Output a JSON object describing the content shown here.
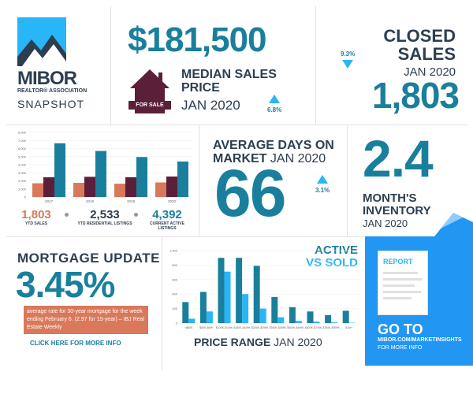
{
  "colors": {
    "teal": "#1a7f9c",
    "dark": "#2d3e50",
    "light_blue": "#29b6f6",
    "orange": "#d9785a",
    "maroon": "#5b1f39",
    "blue_panel": "#2196f3"
  },
  "logo": {
    "brand": "MIBOR",
    "sub": "REALTOR® ASSOCIATION",
    "snapshot": "SNAPSHOT"
  },
  "median": {
    "value": "$181,500",
    "label_line1": "MEDIAN SALES",
    "label_line2": "PRICE",
    "period": "JAN 2020",
    "change": "6.8%",
    "badge": "FOR SALE",
    "icon": "house-icon"
  },
  "closed": {
    "change": "9.3%",
    "label_line1": "CLOSED",
    "label_line2": "SALES",
    "period": "JAN 2020",
    "value": "1,803"
  },
  "adom": {
    "label_line1": "AVERAGE DAYS ON",
    "label_line2a": "MARKET",
    "period": "JAN 2020",
    "value": "66",
    "change": "3.1%"
  },
  "inventory": {
    "value": "2.4",
    "label_line1": "MONTH'S",
    "label_line2": "INVENTORY",
    "period": "JAN 2020"
  },
  "mortgage": {
    "title": "MORTGAGE UPDATE",
    "rate": "3.45%",
    "note": "average rate for 30-year mortgage for the week ending February 6. (2.97 for 15-year) – IBJ Real Estate Weekly",
    "link": "CLICK HERE FOR MORE INFO"
  },
  "go": {
    "report": "REPORT",
    "title": "GO TO",
    "url": "MIBOR.COM/MARKETINSIGHTS",
    "more": "FOR MORE INFO"
  },
  "stats": [
    {
      "value": "1,803",
      "label": "YTD SALES"
    },
    {
      "value": "2,533",
      "label": "YTD RESIDENTIAL LISTINGS"
    },
    {
      "value": "4,392",
      "label": "CURRENT ACTIVE LISTINGS"
    }
  ],
  "chart_data": [
    {
      "type": "bar",
      "categories": [
        "2017",
        "2018",
        "2019",
        "2020"
      ],
      "series": [
        {
          "name": "YTD SALES",
          "values": [
            1700,
            1750,
            1650,
            1803
          ]
        },
        {
          "name": "YTD RESIDENTIAL LISTINGS",
          "values": [
            2450,
            2500,
            2450,
            2533
          ]
        },
        {
          "name": "CURRENT ACTIVE LISTINGS",
          "values": [
            6650,
            5700,
            4950,
            4392
          ]
        }
      ],
      "yticks": [
        "0",
        "1,000",
        "2,000",
        "3,000",
        "4,000",
        "5,000",
        "6,000",
        "7,000",
        "8,000"
      ],
      "ylim": [
        0,
        8000
      ]
    },
    {
      "type": "bar",
      "title_line1": "ACTIVE",
      "title_line2": "VS SOLD",
      "xlabel": "PRICE RANGE",
      "xlabel_period": "JAN 2020",
      "categories": [
        "<$50K",
        "$50K-$99K",
        "$100K-$149K",
        "$150K-$199K",
        "$200K-$299K",
        "$300K-$399K",
        "$400K-$499K",
        "$500K-$749K",
        "$750K-$999K",
        "$1M+"
      ],
      "series": [
        {
          "name": "ACTIVE",
          "values": [
            290,
            430,
            900,
            900,
            790,
            360,
            220,
            160,
            110,
            170
          ]
        },
        {
          "name": "SOLD",
          "values": [
            60,
            160,
            710,
            400,
            200,
            80,
            30,
            20,
            10,
            5
          ]
        }
      ],
      "yticks": [
        "0",
        "200",
        "400",
        "600",
        "800",
        "1,000"
      ],
      "ylim": [
        0,
        1000
      ]
    }
  ]
}
